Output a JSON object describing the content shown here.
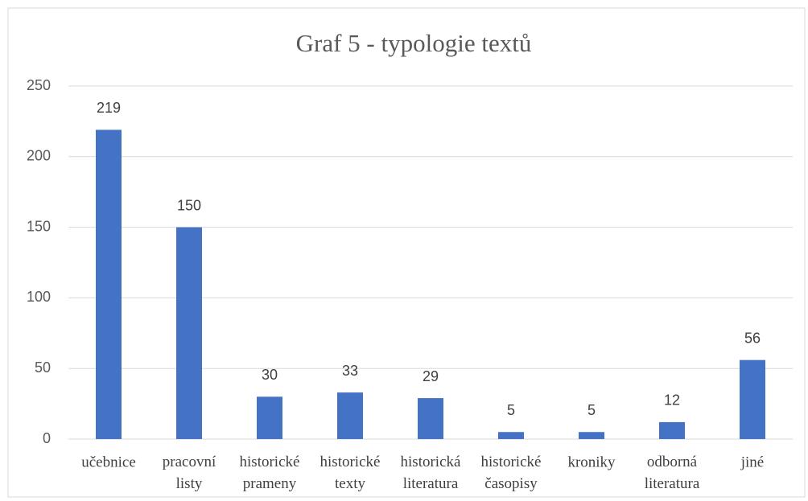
{
  "chart_data": {
    "type": "bar",
    "title": "Graf 5 - typologie textů",
    "categories": [
      "učebnice",
      "pracovní listy",
      "historické prameny",
      "historické texty",
      "historická literatura",
      "historické časopisy",
      "kroniky",
      "odborná literatura",
      "jiné"
    ],
    "values": [
      219,
      150,
      30,
      33,
      29,
      5,
      5,
      12,
      56
    ],
    "color": "#4472c4",
    "ylim": [
      0,
      250
    ],
    "yticks": [
      0,
      50,
      100,
      150,
      200,
      250
    ],
    "grid": true
  }
}
